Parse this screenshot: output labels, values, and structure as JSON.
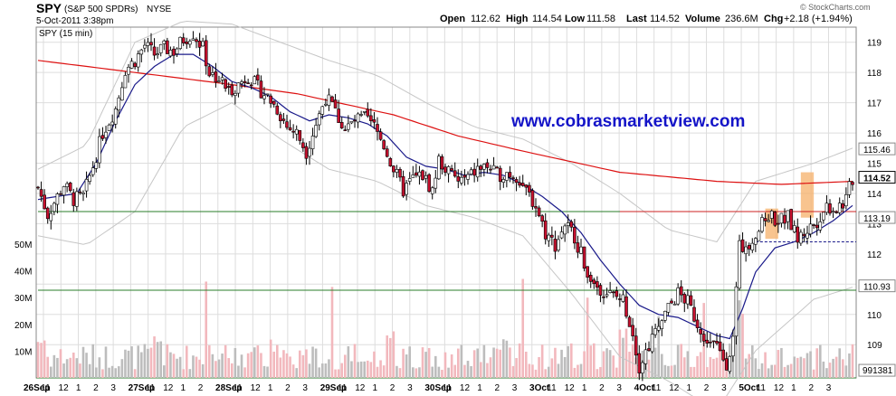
{
  "header": {
    "symbol": "SPY",
    "name": "(S&P 500 SPDRs)",
    "exchange": "NYSE",
    "datetime": "5-Oct-2011 3:38pm",
    "open_label": "Open",
    "open_value": "112.62",
    "high_label": "High",
    "high_value": "114.54",
    "low_label": "Low",
    "low_value": "111.58",
    "last_label": "Last",
    "last_value": "114.52",
    "volume_label": "Volume",
    "volume_value": "236.6M",
    "chg_label": "Chg",
    "chg_value": "+2.18 (+1.94%)",
    "copyright": "© StockCharts.com"
  },
  "panel_label": "SPY (15 min)",
  "watermark": "www.cobrasmarketview.com",
  "colors": {
    "up": "#ffffff",
    "down": "#c8102e",
    "candle_outline": "#000000",
    "sma_long": "#dd1111",
    "sma_short": "#1a1a8a",
    "bollinger": "#c6c6c6",
    "hline": "#2a7d2a",
    "resistance": "#cc2222",
    "support_dash": "#1a1a8a",
    "volume_up": "#bdbdbd",
    "volume_down": "#f2b8bd",
    "highlight": "#f5b06a",
    "watermark": "#1414c8"
  },
  "chart_data": {
    "type": "candlestick",
    "title": "SPY (15 min)",
    "price_axis": {
      "ticks": [
        109,
        110,
        111,
        112,
        113,
        114,
        115,
        116,
        117,
        118,
        119
      ],
      "range": [
        107.9,
        119.5
      ]
    },
    "volume_axis": {
      "ticks": [
        "10M",
        "20M",
        "30M",
        "40M",
        "50M"
      ],
      "range": [
        0,
        50
      ]
    },
    "x_labels": [
      "26Sep",
      "11",
      "12",
      "1",
      "2",
      "3",
      "27Sep",
      "11",
      "12",
      "1",
      "2",
      "28Sep",
      "11",
      "12",
      "1",
      "2",
      "3",
      "29Sep",
      "11",
      "12",
      "1",
      "2",
      "3",
      "30Sep",
      "11",
      "12",
      "1",
      "2",
      "3",
      "3Oct",
      "11",
      "12",
      "1",
      "2",
      "3",
      "4Oct",
      "11",
      "12",
      "1",
      "2",
      "3",
      "5Oct",
      "11",
      "12",
      "1",
      "2",
      "3"
    ],
    "price_badges": [
      {
        "label": "115.46",
        "value": 115.46,
        "style": "gray"
      },
      {
        "label": "114.52",
        "value": 114.52,
        "style": "bold"
      },
      {
        "label": "113.19",
        "value": 113.19,
        "style": "gray"
      },
      {
        "label": "110.93",
        "value": 110.93,
        "style": "gray"
      }
    ],
    "volume_badge": {
      "label": "991381",
      "value": 0.99
    },
    "price_anchors": [
      [
        0,
        114.2
      ],
      [
        3,
        113.3
      ],
      [
        8,
        114.3
      ],
      [
        11,
        113.8
      ],
      [
        14,
        113.9
      ],
      [
        17,
        114.9
      ],
      [
        20,
        116.0
      ],
      [
        24,
        116.8
      ],
      [
        27,
        118.1
      ],
      [
        30,
        118.4
      ],
      [
        33,
        118.9
      ],
      [
        36,
        118.6
      ],
      [
        39,
        118.8
      ],
      [
        42,
        118.7
      ],
      [
        45,
        119.1
      ],
      [
        48,
        119.3
      ],
      [
        51,
        118.8
      ],
      [
        53,
        118.0
      ],
      [
        56,
        117.8
      ],
      [
        59,
        117.4
      ],
      [
        62,
        117.6
      ],
      [
        65,
        117.9
      ],
      [
        68,
        117.5
      ],
      [
        71,
        117.2
      ],
      [
        74,
        116.8
      ],
      [
        77,
        116.2
      ],
      [
        80,
        116.0
      ],
      [
        83,
        115.4
      ],
      [
        86,
        116.3
      ],
      [
        89,
        117.2
      ],
      [
        92,
        116.7
      ],
      [
        95,
        116.1
      ],
      [
        98,
        116.4
      ],
      [
        101,
        116.5
      ],
      [
        104,
        116.2
      ],
      [
        107,
        115.6
      ],
      [
        110,
        114.8
      ],
      [
        113,
        114.1
      ],
      [
        116,
        114.5
      ],
      [
        119,
        114.6
      ],
      [
        122,
        114.1
      ],
      [
        124,
        115.1
      ],
      [
        127,
        114.7
      ],
      [
        130,
        114.4
      ],
      [
        133,
        114.5
      ],
      [
        136,
        114.8
      ],
      [
        139,
        114.9
      ],
      [
        142,
        114.6
      ],
      [
        145,
        114.7
      ],
      [
        148,
        114.6
      ],
      [
        151,
        114.1
      ],
      [
        154,
        113.6
      ],
      [
        157,
        112.7
      ],
      [
        160,
        112.3
      ],
      [
        163,
        113.0
      ],
      [
        166,
        112.6
      ],
      [
        169,
        111.7
      ],
      [
        172,
        111.0
      ],
      [
        175,
        110.8
      ],
      [
        178,
        110.6
      ],
      [
        181,
        110.5
      ],
      [
        184,
        109.4
      ],
      [
        186,
        108.3
      ],
      [
        189,
        109.0
      ],
      [
        192,
        109.6
      ],
      [
        195,
        110.2
      ],
      [
        198,
        110.7
      ],
      [
        201,
        110.4
      ],
      [
        204,
        109.7
      ],
      [
        207,
        109.2
      ],
      [
        210,
        108.9
      ],
      [
        213,
        108.4
      ],
      [
        215,
        109.2
      ],
      [
        217,
        112.2
      ],
      [
        220,
        112.4
      ],
      [
        223,
        112.8
      ],
      [
        226,
        113.3
      ],
      [
        229,
        113.1
      ],
      [
        232,
        113.2
      ],
      [
        235,
        112.5
      ],
      [
        238,
        112.8
      ],
      [
        241,
        113.1
      ],
      [
        244,
        113.6
      ],
      [
        247,
        113.5
      ],
      [
        250,
        113.8
      ],
      [
        252,
        114.5
      ]
    ],
    "sma_long": [
      [
        0,
        118.4
      ],
      [
        30,
        118.0
      ],
      [
        60,
        117.6
      ],
      [
        80,
        117.3
      ],
      [
        110,
        116.6
      ],
      [
        130,
        115.9
      ],
      [
        150,
        115.4
      ],
      [
        180,
        114.7
      ],
      [
        210,
        114.4
      ],
      [
        230,
        114.3
      ],
      [
        252,
        114.4
      ]
    ],
    "sma_short": [
      [
        0,
        113.8
      ],
      [
        6,
        113.9
      ],
      [
        12,
        114.0
      ],
      [
        18,
        115.0
      ],
      [
        24,
        116.4
      ],
      [
        30,
        117.6
      ],
      [
        36,
        118.2
      ],
      [
        42,
        118.6
      ],
      [
        48,
        118.6
      ],
      [
        54,
        118.2
      ],
      [
        60,
        117.7
      ],
      [
        66,
        117.5
      ],
      [
        72,
        117.2
      ],
      [
        78,
        116.7
      ],
      [
        84,
        116.4
      ],
      [
        90,
        116.6
      ],
      [
        96,
        116.5
      ],
      [
        102,
        116.3
      ],
      [
        108,
        115.9
      ],
      [
        114,
        115.2
      ],
      [
        120,
        114.9
      ],
      [
        126,
        114.8
      ],
      [
        132,
        114.6
      ],
      [
        138,
        114.7
      ],
      [
        144,
        114.6
      ],
      [
        150,
        114.3
      ],
      [
        156,
        113.9
      ],
      [
        162,
        113.4
      ],
      [
        168,
        112.7
      ],
      [
        174,
        111.8
      ],
      [
        180,
        111.0
      ],
      [
        186,
        110.3
      ],
      [
        192,
        110.0
      ],
      [
        198,
        109.9
      ],
      [
        204,
        109.6
      ],
      [
        210,
        109.3
      ],
      [
        214,
        109.2
      ],
      [
        218,
        110.2
      ],
      [
        222,
        111.4
      ],
      [
        228,
        112.2
      ],
      [
        234,
        112.4
      ],
      [
        240,
        112.7
      ],
      [
        246,
        113.1
      ],
      [
        252,
        113.6
      ]
    ],
    "bb_upper": [
      [
        0,
        114.8
      ],
      [
        15,
        115.6
      ],
      [
        30,
        119.0
      ],
      [
        45,
        119.7
      ],
      [
        60,
        119.6
      ],
      [
        75,
        119.0
      ],
      [
        90,
        118.4
      ],
      [
        105,
        117.9
      ],
      [
        120,
        117.0
      ],
      [
        135,
        116.2
      ],
      [
        150,
        115.8
      ],
      [
        165,
        115.0
      ],
      [
        180,
        114.0
      ],
      [
        195,
        112.8
      ],
      [
        210,
        112.4
      ],
      [
        222,
        114.4
      ],
      [
        240,
        115.0
      ],
      [
        252,
        115.5
      ]
    ],
    "bb_lower": [
      [
        0,
        112.6
      ],
      [
        15,
        112.3
      ],
      [
        30,
        113.4
      ],
      [
        45,
        116.2
      ],
      [
        60,
        117.0
      ],
      [
        75,
        115.8
      ],
      [
        90,
        114.8
      ],
      [
        105,
        114.4
      ],
      [
        120,
        113.6
      ],
      [
        135,
        113.2
      ],
      [
        150,
        112.6
      ],
      [
        165,
        110.7
      ],
      [
        180,
        108.6
      ],
      [
        195,
        107.8
      ],
      [
        210,
        106.8
      ],
      [
        222,
        108.8
      ],
      [
        240,
        110.5
      ],
      [
        252,
        110.9
      ]
    ],
    "h_lines": [
      {
        "value": 113.4,
        "color_key": "hline",
        "from": 0,
        "to": 252
      },
      {
        "value": 110.8,
        "color_key": "hline",
        "from": 0,
        "to": 252
      },
      {
        "value": 113.4,
        "color_key": "resistance",
        "from": 180,
        "to": 252
      }
    ],
    "support_dash": {
      "value": 112.4,
      "from": 222,
      "to": 252
    },
    "highlight_boxes": [
      {
        "from": 225,
        "to": 229,
        "top": 113.5,
        "bottom": 112.5
      },
      {
        "from": 236,
        "to": 240,
        "top": 114.7,
        "bottom": 113.2
      }
    ],
    "volume_spikes": [
      [
        52,
        36
      ],
      [
        91,
        34
      ],
      [
        150,
        37
      ],
      [
        170,
        30
      ],
      [
        206,
        28
      ],
      [
        217,
        29
      ],
      [
        218,
        24
      ],
      [
        192,
        23
      ]
    ]
  }
}
